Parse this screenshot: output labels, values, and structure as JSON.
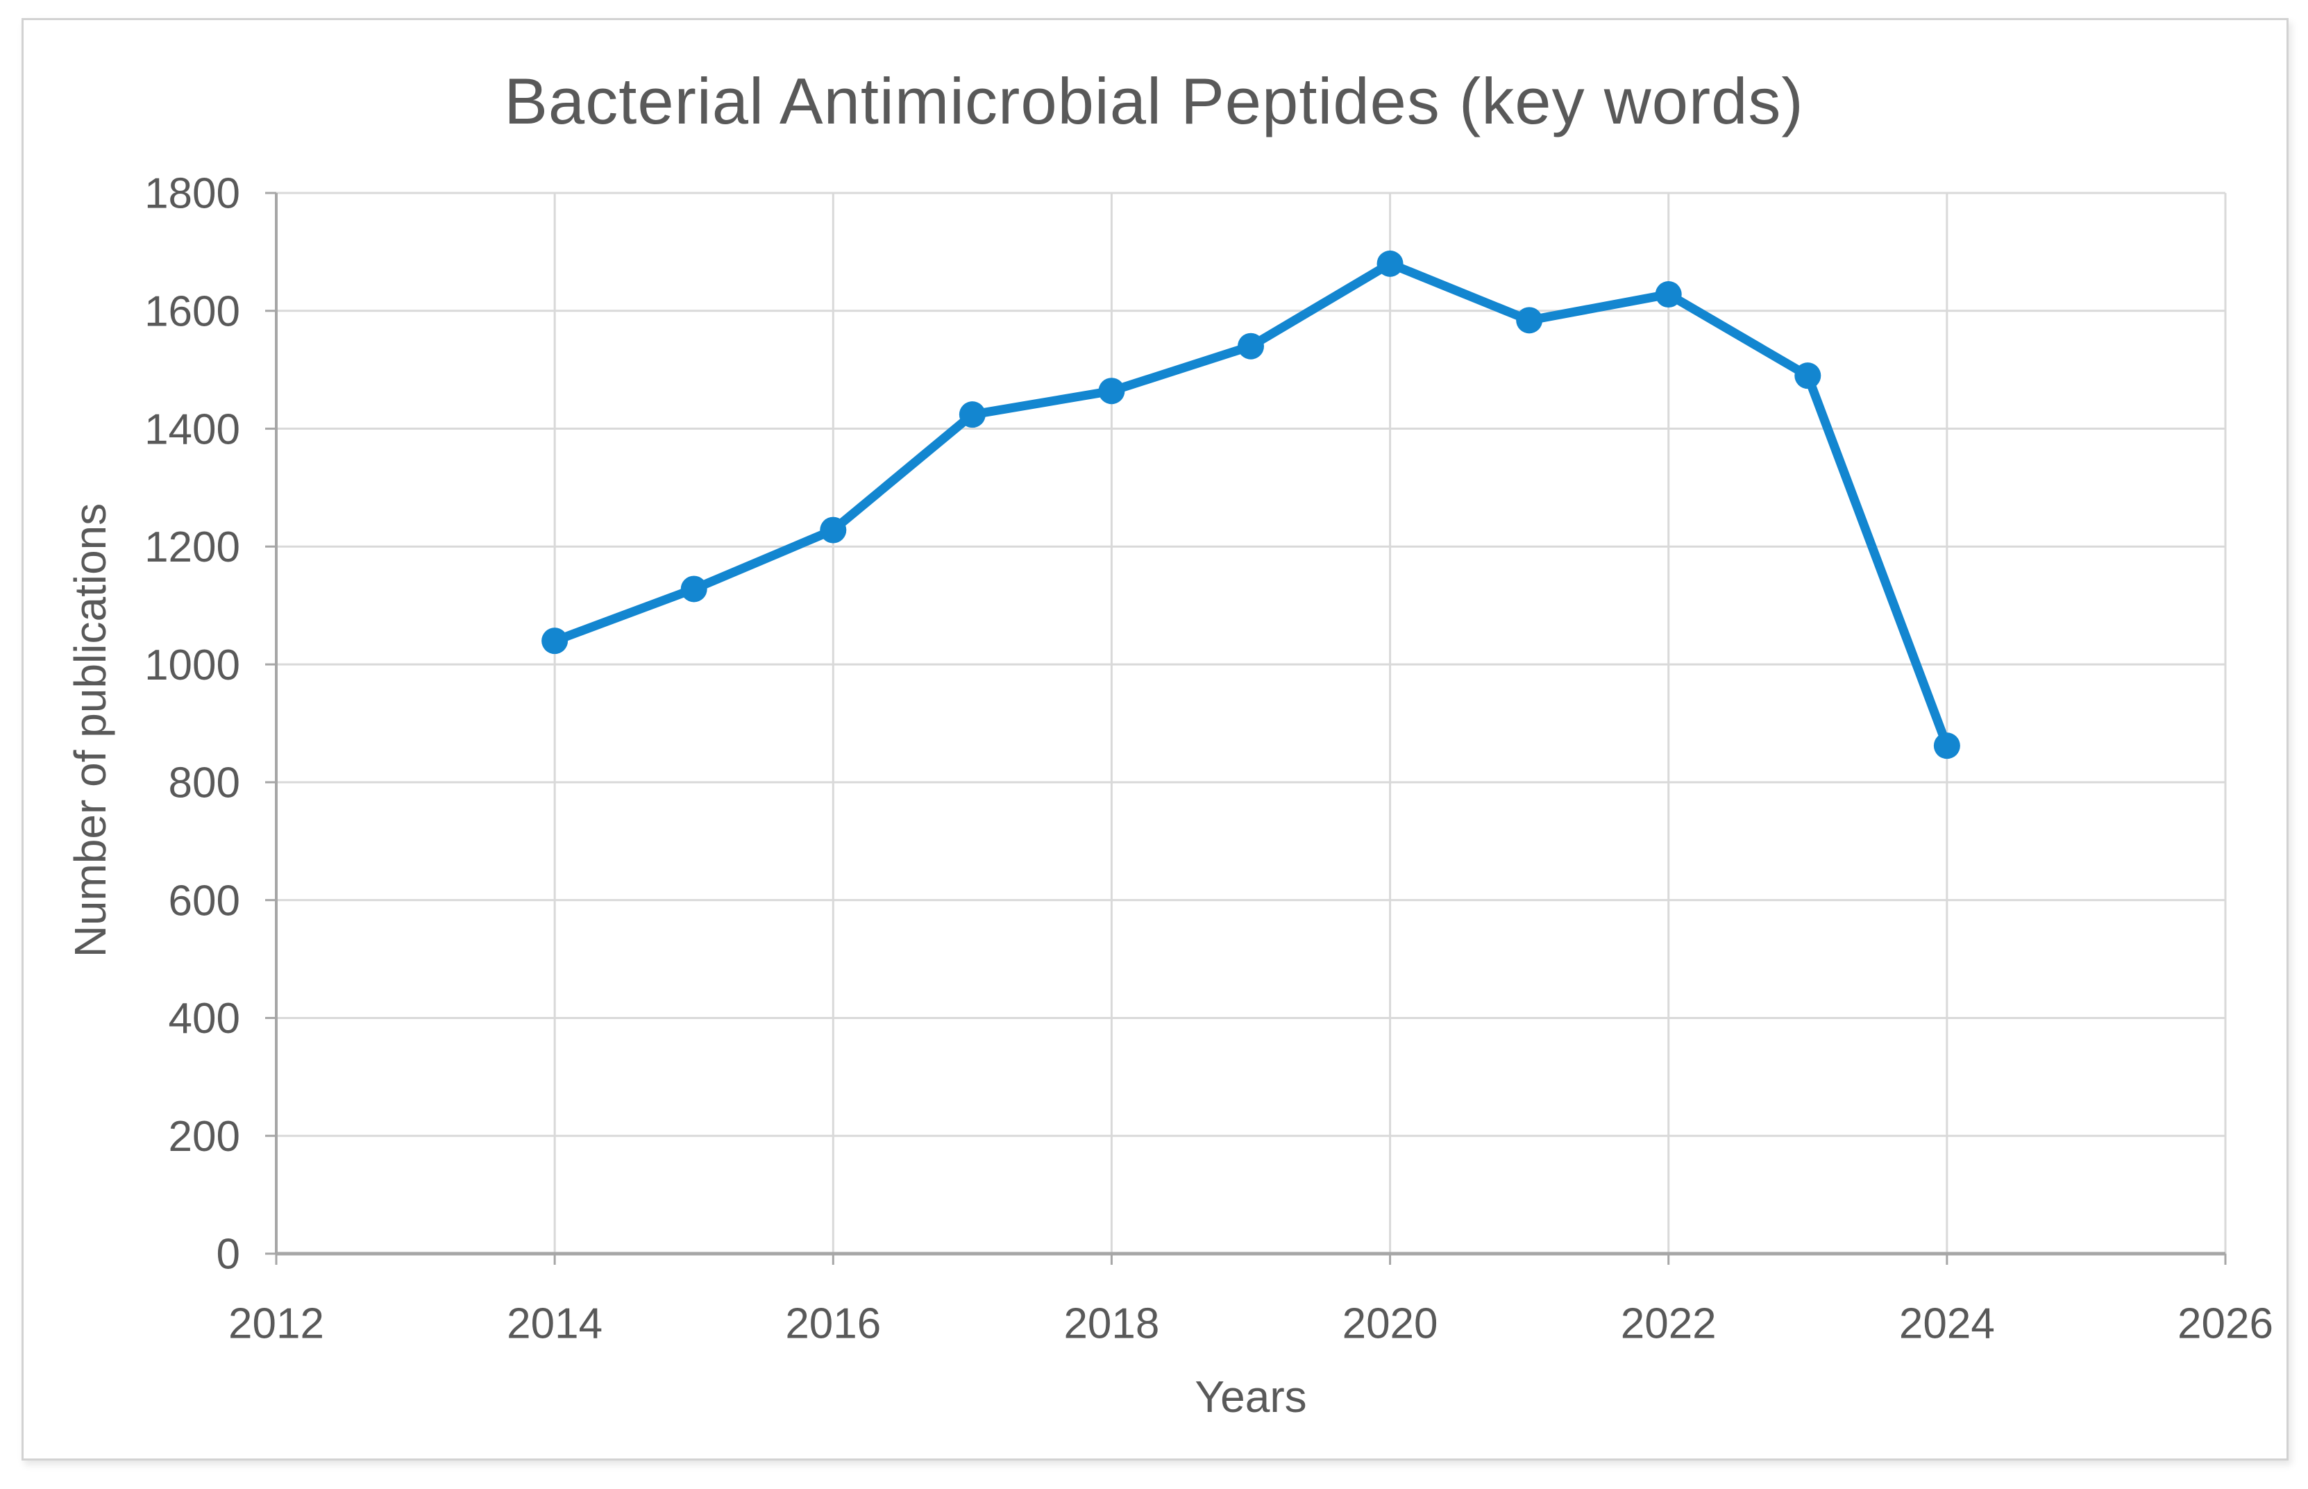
{
  "figure": {
    "background": "#ffffff",
    "frame_border_color": "#d2d2d2"
  },
  "chart_data": {
    "type": "line",
    "title": "Bacterial Antimicrobial Peptides (key words)",
    "xlabel": "Years",
    "ylabel": "Number of publications",
    "x": [
      2014,
      2015,
      2016,
      2017,
      2018,
      2019,
      2020,
      2021,
      2022,
      2023,
      2024
    ],
    "series": [
      {
        "name": "Number of publications",
        "values": [
          1040,
          1128,
          1228,
          1424,
          1464,
          1540,
          1680,
          1584,
          1628,
          1490,
          862
        ]
      }
    ],
    "xlim": [
      2012,
      2026
    ],
    "ylim": [
      0,
      1800
    ],
    "x_ticks": [
      2012,
      2014,
      2016,
      2018,
      2020,
      2022,
      2024,
      2026
    ],
    "y_ticks": [
      0,
      200,
      400,
      600,
      800,
      1000,
      1200,
      1400,
      1600,
      1800
    ],
    "grid": true,
    "legend": false,
    "line_color": "#1386d0",
    "marker": "circle",
    "grid_color": "#d9d9d9",
    "axis_color": "#a6a6a6",
    "text_color": "#595959"
  }
}
